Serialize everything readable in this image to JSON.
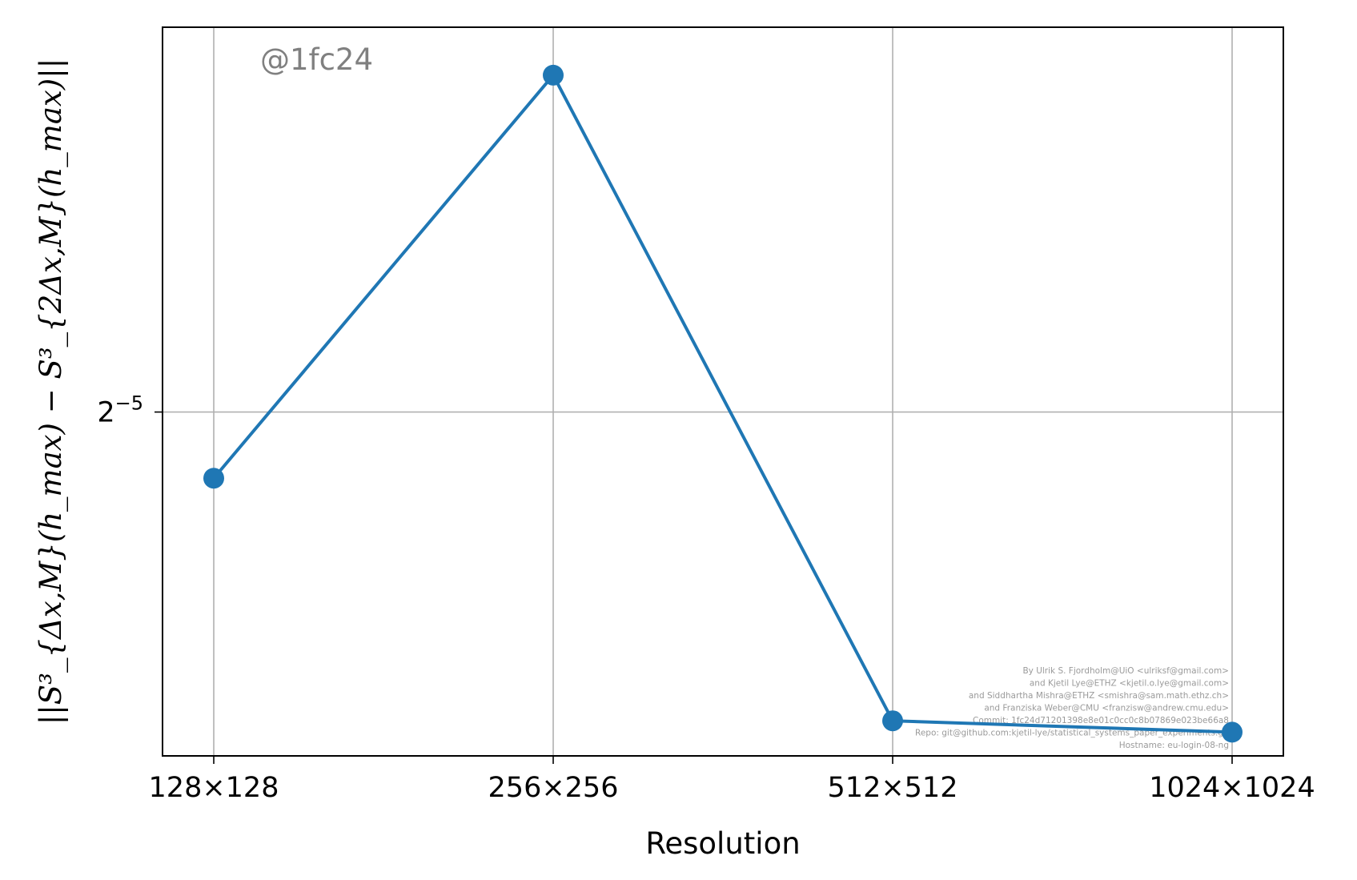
{
  "chart_data": {
    "type": "line",
    "categories": [
      "128×128",
      "256×256",
      "512×512",
      "1024×1024"
    ],
    "x": [
      128,
      256,
      512,
      1024
    ],
    "series": [
      {
        "values": [
          0.0267,
          0.0696,
          0.015,
          0.0146
        ]
      }
    ],
    "xlabel": "Resolution",
    "ylabel": "||S³_{Δx,M}(h_max) − S³_{2Δx,M}(h_max)||",
    "yticks": [
      {
        "value": 0.03125,
        "label_base": "2",
        "label_exp": "−5"
      }
    ],
    "ylim": [
      0.0138,
      0.078
    ],
    "yscale": "log2",
    "xscale": "log2",
    "grid": true,
    "color": "#1f77b4"
  },
  "watermark": "@1fc24",
  "credits": [
    "By Ulrik S. Fjordholm@UiO <ulriksf@gmail.com>",
    "and Kjetil Lye@ETHZ <kjetil.o.lye@gmail.com>",
    "and Siddhartha Mishra@ETHZ <smishra@sam.math.ethz.ch>",
    "and Franziska Weber@CMU <franzisw@andrew.cmu.edu>",
    "Commit: 1fc24d71201398e8e01c0cc0c8b07869e023be66a8",
    "Repo: git@github.com:kjetil-lye/statistical_systems_paper_experiments.git",
    "Hostname: eu-login-08-ng"
  ]
}
